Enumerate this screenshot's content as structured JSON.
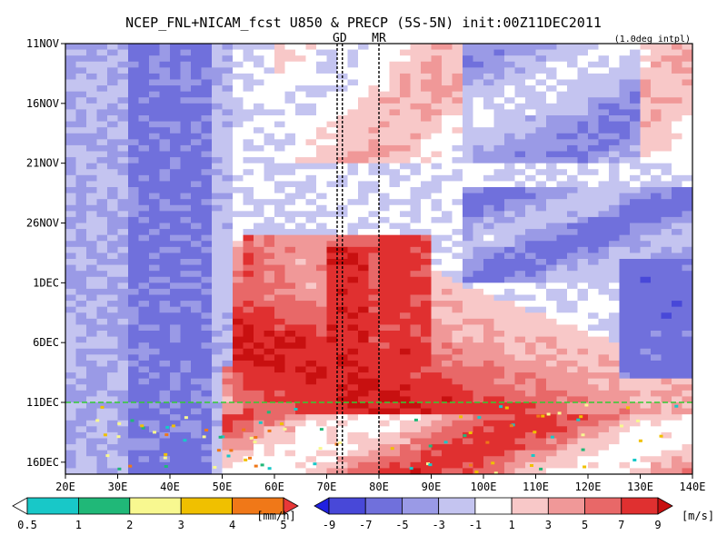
{
  "chart_data": {
    "type": "heatmap",
    "title": "NCEP_FNL+NICAM_fcst U850 & PRECP (5S-5N) init:00Z11DEC2011",
    "interp_note": "(1.0deg intpl)",
    "x_axis": {
      "range": [
        20,
        140
      ],
      "ticks": [
        20,
        30,
        40,
        50,
        60,
        70,
        80,
        90,
        100,
        110,
        120,
        130,
        140
      ],
      "tick_labels": [
        "20E",
        "30E",
        "40E",
        "50E",
        "60E",
        "70E",
        "80E",
        "90E",
        "100E",
        "110E",
        "120E",
        "130E",
        "140E"
      ]
    },
    "y_axis": {
      "range_days": [
        0,
        36
      ],
      "ticks_days": [
        0,
        5,
        10,
        15,
        20,
        25,
        30,
        35
      ],
      "tick_labels": [
        "11NOV",
        "16NOV",
        "21NOV",
        "26NOV",
        "1DEC",
        "6DEC",
        "11DEC",
        "16DEC"
      ],
      "inverted": true
    },
    "markers": {
      "vertical_lines": [
        {
          "label": "GD",
          "x": [
            72,
            73
          ]
        },
        {
          "label": "MR",
          "x": [
            80
          ]
        }
      ],
      "init_line": {
        "label": "11DEC",
        "color": "#33cc33"
      }
    },
    "colorbars": [
      {
        "name": "precip",
        "unit": "[mm/h]",
        "tick_labels": [
          "0.5",
          "1",
          "2",
          "3",
          "4",
          "5"
        ],
        "colors": [
          "#ffffff",
          "#18c8c8",
          "#20b878",
          "#f8f890",
          "#f0c000",
          "#f07818",
          "#e83838"
        ]
      },
      {
        "name": "u850",
        "unit": "[m/s]",
        "tick_labels": [
          "-9",
          "-7",
          "-5",
          "-3",
          "-1",
          "1",
          "3",
          "5",
          "7",
          "9"
        ],
        "colors": [
          "#2020e0",
          "#4848d8",
          "#7070dc",
          "#9a9ae6",
          "#c4c4f0",
          "#ffffff",
          "#f8c8c8",
          "#f09898",
          "#e86868",
          "#e03030",
          "#c81010"
        ]
      }
    ],
    "grid": false
  }
}
